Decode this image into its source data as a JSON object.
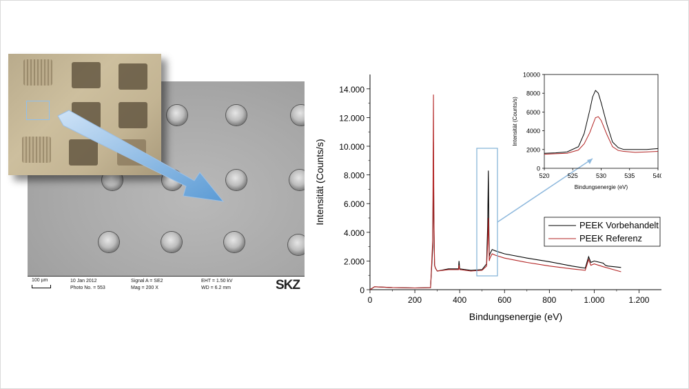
{
  "sem": {
    "scale_label": "100 µm",
    "date": "10 Jan 2012",
    "photo_no": "Photo No. = 553",
    "signal": "Signal A = SE2",
    "mag": "Mag =   200 X",
    "eht": "EHT =  1.50 kV",
    "wd": "WD =  6.2 mm",
    "logo": "SKZ"
  },
  "chart_data": [
    {
      "type": "line",
      "xlabel": "Bindungsenergie (eV)",
      "ylabel": "Intensität (Counts/s)",
      "xlim": [
        0,
        1300
      ],
      "ylim": [
        0,
        15000
      ],
      "xticks": [
        0,
        200,
        400,
        600,
        800,
        1000,
        1200
      ],
      "xtick_labels": [
        "0",
        "200",
        "400",
        "600",
        "800",
        "1.000",
        "1.200"
      ],
      "yticks": [
        0,
        2000,
        4000,
        6000,
        8000,
        10000,
        12000,
        14000
      ],
      "ytick_labels": [
        "0",
        "2.000",
        "4.000",
        "6.000",
        "8.000",
        "10.000",
        "12.000",
        "14.000"
      ],
      "legend_position": "center-right",
      "series": [
        {
          "name": "PEEK Vorbehandelt",
          "color": "#000000",
          "x": [
            0,
            20,
            100,
            200,
            270,
            280,
            283,
            285,
            288,
            292,
            300,
            350,
            395,
            397,
            400,
            450,
            500,
            520,
            525,
            528,
            530,
            532,
            535,
            545,
            560,
            600,
            700,
            800,
            900,
            960,
            975,
            985,
            1000,
            1040,
            1050,
            1060,
            1120
          ],
          "y": [
            0,
            200,
            150,
            120,
            140,
            3000,
            10300,
            5000,
            1700,
            1500,
            1300,
            1450,
            1450,
            2000,
            1450,
            1350,
            1400,
            1800,
            4500,
            8300,
            4500,
            2300,
            2500,
            2800,
            2700,
            2500,
            2200,
            1950,
            1650,
            1500,
            2300,
            1900,
            2000,
            1850,
            1700,
            1650,
            1550
          ]
        },
        {
          "name": "PEEK Referenz",
          "color": "#b22222",
          "x": [
            0,
            20,
            100,
            200,
            270,
            280,
            283,
            285,
            288,
            292,
            300,
            350,
            395,
            397,
            400,
            450,
            500,
            520,
            525,
            528,
            530,
            532,
            535,
            545,
            560,
            600,
            700,
            800,
            900,
            960,
            975,
            985,
            1000,
            1040,
            1120
          ],
          "y": [
            0,
            200,
            150,
            120,
            140,
            3500,
            13600,
            5500,
            1700,
            1500,
            1300,
            1400,
            1400,
            1700,
            1400,
            1300,
            1350,
            1650,
            3200,
            5000,
            3200,
            2000,
            2200,
            2500,
            2400,
            2200,
            1900,
            1650,
            1450,
            1350,
            2100,
            1700,
            1800,
            1600,
            1250
          ]
        }
      ]
    },
    {
      "type": "line",
      "xlabel": "Bindungsenergie (eV)",
      "ylabel": "Intensität (Counts/s)",
      "xlim": [
        520,
        540
      ],
      "ylim": [
        0,
        10000
      ],
      "xticks": [
        520,
        525,
        530,
        535,
        540
      ],
      "xtick_labels": [
        "520",
        "525",
        "530",
        "535",
        "540"
      ],
      "yticks": [
        0,
        2000,
        4000,
        6000,
        8000,
        10000
      ],
      "ytick_labels": [
        "0",
        "2000",
        "4000",
        "6000",
        "8000",
        "10000"
      ],
      "series": [
        {
          "color": "#000000",
          "x": [
            520,
            522,
            524,
            526,
            527,
            528,
            528.5,
            529,
            529.5,
            530,
            531,
            532,
            533,
            534,
            536,
            538,
            540
          ],
          "y": [
            1600,
            1650,
            1750,
            2300,
            3700,
            6200,
            7600,
            8300,
            8000,
            7000,
            4700,
            2800,
            2200,
            2000,
            2000,
            2000,
            2100
          ]
        },
        {
          "color": "#b22222",
          "x": [
            520,
            522,
            524,
            526,
            527,
            528,
            528.5,
            529,
            529.5,
            530,
            531,
            532,
            533,
            534,
            536,
            538,
            540
          ],
          "y": [
            1500,
            1550,
            1600,
            1950,
            2600,
            3800,
            4600,
            5400,
            5500,
            5100,
            3600,
            2300,
            1900,
            1800,
            1700,
            1750,
            1800
          ]
        }
      ]
    }
  ]
}
